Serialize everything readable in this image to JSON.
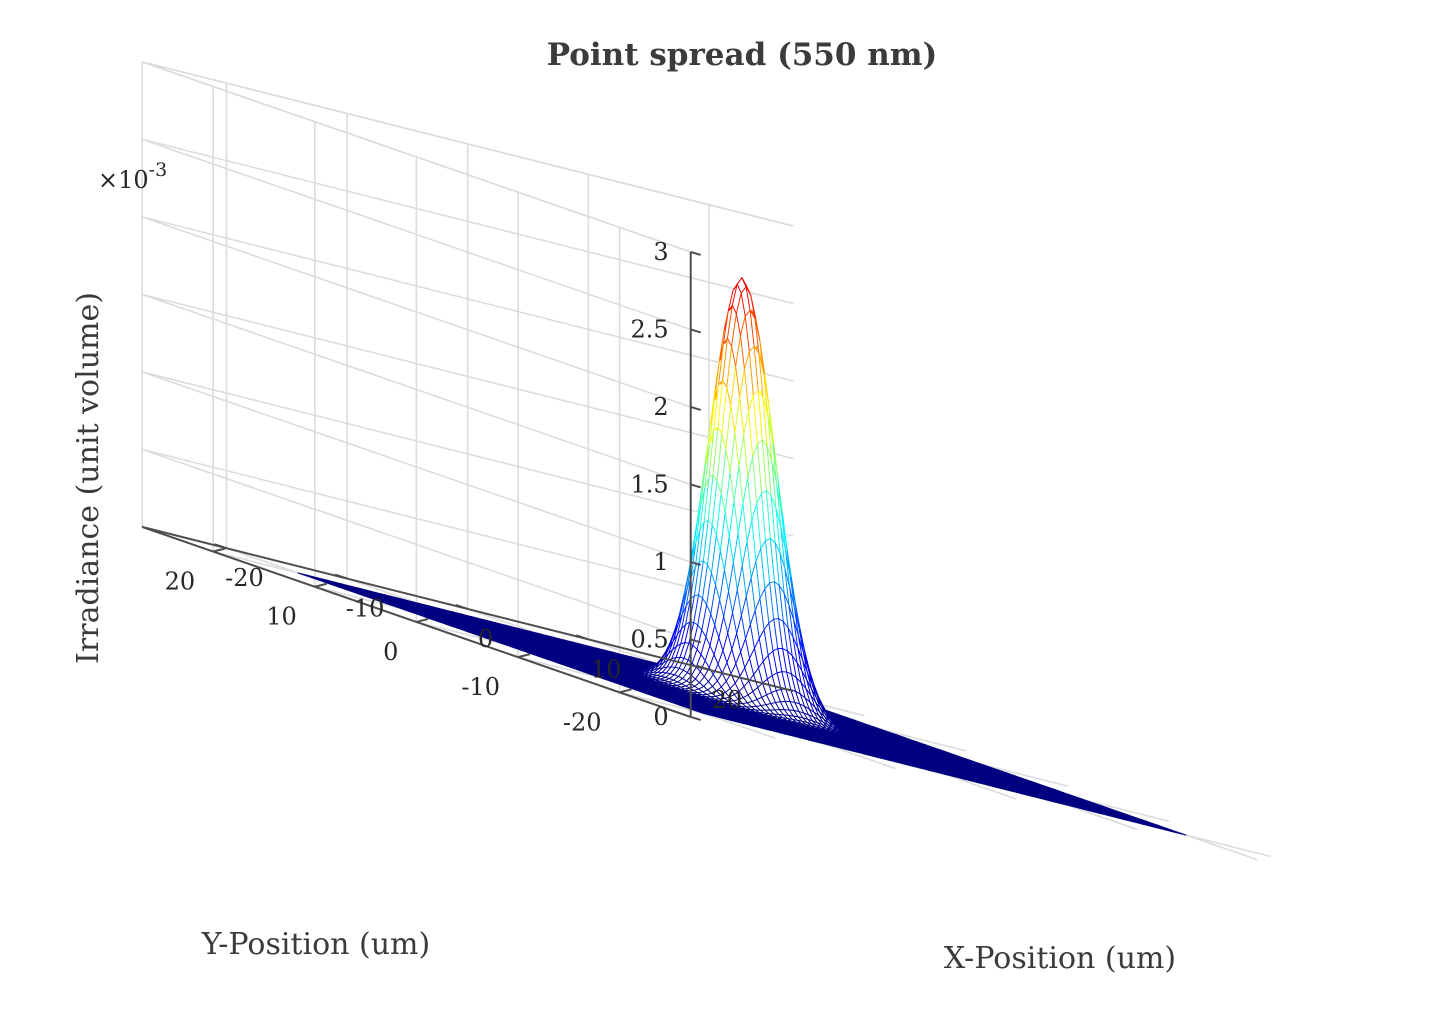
{
  "chart_data": {
    "type": "surface",
    "title": "Point spread (550 nm)",
    "xlabel": "X-Position (um)",
    "ylabel": "Y-Position (um)",
    "zlabel": "Irradiance (unit volume)",
    "z_exponent_label": "×10",
    "z_exponent_power": "-3",
    "xlim": [
      -27,
      27
    ],
    "ylim": [
      -27,
      27
    ],
    "zlim": [
      0,
      0.003
    ],
    "x_ticks": [
      -20,
      -10,
      0,
      10,
      20
    ],
    "x_tick_labels": [
      "-20",
      "-10",
      "0",
      "10",
      "20"
    ],
    "y_ticks": [
      -20,
      -10,
      0,
      10,
      20
    ],
    "y_tick_labels": [
      "-20",
      "-10",
      "0",
      "10",
      "20"
    ],
    "z_ticks": [
      0,
      0.0005,
      0.001,
      0.0015,
      0.002,
      0.0025,
      0.003
    ],
    "z_tick_labels": [
      "0",
      "0.5",
      "1",
      "1.5",
      "2",
      "2.5",
      "3"
    ],
    "surface_x_range": [
      -20,
      20
    ],
    "surface_y_range": [
      -20,
      20
    ],
    "peak": {
      "x": 0,
      "y": 0,
      "z": 0.00275
    },
    "sigma_um": 2.1,
    "colormap": "jet",
    "grid": true,
    "colors": {
      "axis": "#4d4d4d",
      "grid": "#dcdcdc",
      "low": "#00007f",
      "high": "#800000"
    }
  }
}
